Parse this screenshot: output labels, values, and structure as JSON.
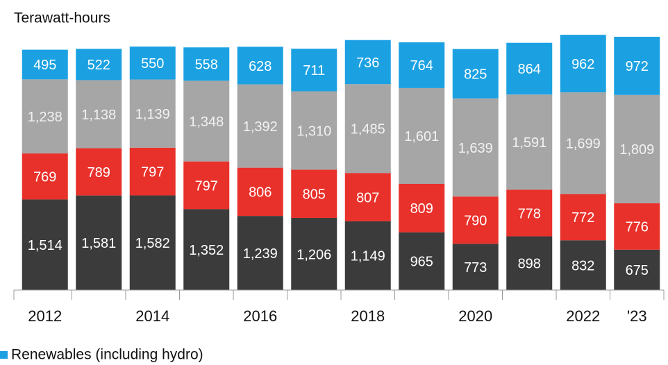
{
  "chart_data": {
    "type": "stacked_bar",
    "title": "Terawatt-hours",
    "categories": [
      "2012",
      null,
      "2014",
      null,
      "2016",
      null,
      "2018",
      null,
      "2020",
      null,
      "2022",
      "'23"
    ],
    "series": [
      {
        "color": "#3b3b3b",
        "values": [
          1514,
          1581,
          1582,
          1352,
          1239,
          1206,
          1149,
          965,
          773,
          898,
          832,
          675
        ],
        "value_labels": [
          "1,514",
          "1,581",
          "1,582",
          "1,352",
          "1,239",
          "1,206",
          "1,149",
          "965",
          "773",
          "898",
          "832",
          "675"
        ]
      },
      {
        "color": "#e8312a",
        "values": [
          769,
          789,
          797,
          797,
          806,
          805,
          807,
          809,
          790,
          778,
          772,
          776
        ]
      },
      {
        "color": "#a6a6a6",
        "values": [
          1238,
          1138,
          1139,
          1348,
          1392,
          1310,
          1485,
          1601,
          1639,
          1591,
          1699,
          1809
        ],
        "value_labels": [
          "1,238",
          "1,138",
          "1,139",
          "1,348",
          "1,392",
          "1,310",
          "1,485",
          "1,601",
          "1,639",
          "1,591",
          "1,699",
          "1,809"
        ]
      },
      {
        "name": "Renewables (including hydro)",
        "color": "#1ba1e2",
        "values": [
          495,
          522,
          550,
          558,
          628,
          711,
          736,
          764,
          825,
          864,
          962,
          972
        ]
      }
    ],
    "ylim": [
      0,
      4800
    ]
  }
}
